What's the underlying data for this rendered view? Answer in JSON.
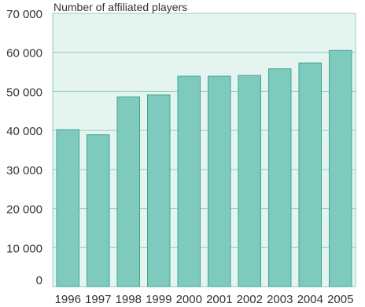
{
  "chart_data": {
    "type": "bar",
    "title": "",
    "xlabel": "",
    "ylabel": "Number of affiliated players",
    "categories": [
      "1996",
      "1997",
      "1998",
      "1999",
      "2000",
      "2001",
      "2002",
      "2003",
      "2004",
      "2005"
    ],
    "values": [
      40200,
      38900,
      48600,
      49100,
      53900,
      53900,
      54100,
      55800,
      57300,
      60500
    ],
    "ylim": [
      0,
      70000
    ],
    "yticks": [
      {
        "value": 0,
        "label": "0"
      },
      {
        "value": 10000,
        "label": "10 000"
      },
      {
        "value": 20000,
        "label": "20 000"
      },
      {
        "value": 30000,
        "label": "30 000"
      },
      {
        "value": 40000,
        "label": "40 000"
      },
      {
        "value": 50000,
        "label": "50 000"
      },
      {
        "value": 60000,
        "label": "60 000"
      },
      {
        "value": 70000,
        "label": "70 000"
      }
    ],
    "grid": true,
    "colors": {
      "plot_background": "#E6F4F0",
      "bar_fill": "#7ECBBE",
      "bar_stroke": "#3FA593",
      "gridline": "#8FCFC3"
    }
  }
}
